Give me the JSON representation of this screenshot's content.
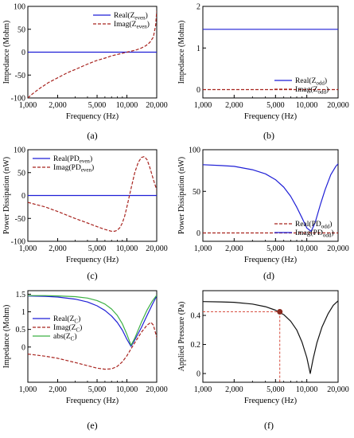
{
  "colors": {
    "blue": "#1f1fd6",
    "red": "#a8241f",
    "green": "#3cb043",
    "black": "#111111",
    "pink": "#e88aa5",
    "cyan": "#8ecff0",
    "marker": "#8b2a1f"
  },
  "x_ticks": [
    "1,000",
    "2,000",
    "5,000",
    "10,000",
    "20,000"
  ],
  "chart_data": [
    {
      "panel_label": "(a)",
      "type": "line",
      "xscale": "log",
      "xlim": [
        1000,
        20000
      ],
      "ylim": [
        -100,
        100
      ],
      "yticks": [
        "100",
        "50",
        "0",
        "-50",
        "-100"
      ],
      "xlabel": "Frequency (Hz)",
      "ylabel": "Impedance (Mohm)",
      "legend": {
        "position": "top-right",
        "entries": [
          [
            "Real(Z",
            "even",
            ")"
          ],
          [
            "Imag(Z",
            "even",
            ")"
          ]
        ]
      },
      "series": [
        {
          "name": "Real(Z_even)",
          "style": "solid",
          "color": "blue",
          "x": [
            1000,
            20000
          ],
          "y": [
            0,
            0
          ]
        },
        {
          "name": "Imag(Z_even)",
          "style": "dashed",
          "color": "red",
          "x": [
            1000,
            1100,
            1300,
            1600,
            2000,
            2500,
            3000,
            4000,
            5000,
            6000,
            7000,
            8000,
            9000,
            10000,
            11000,
            12500,
            14000,
            15500,
            17000,
            18500,
            19500,
            20000
          ],
          "y": [
            -100,
            -92,
            -80,
            -67,
            -56,
            -45,
            -38,
            -26,
            -18,
            -13,
            -8,
            -5,
            -2.5,
            0,
            2,
            5,
            9,
            14,
            21,
            33,
            58,
            90
          ]
        }
      ]
    },
    {
      "panel_label": "(b)",
      "type": "line",
      "xscale": "log",
      "xlim": [
        1000,
        20000
      ],
      "ylim": [
        -0.2,
        2
      ],
      "yticks": [
        "2",
        "1",
        "0"
      ],
      "xlabel": "Frequency (Hz)",
      "ylabel": "Impedance (Mohm)",
      "legend": {
        "position": "bottom-right",
        "entries": [
          [
            "Real(Z",
            "odd",
            ")"
          ],
          [
            "Imag(Z",
            "odd",
            ")"
          ]
        ]
      },
      "series": [
        {
          "name": "Real(Z_odd)",
          "style": "solid",
          "color": "blue",
          "x": [
            1000,
            20000
          ],
          "y": [
            1.45,
            1.45
          ]
        },
        {
          "name": "Imag(Z_odd)",
          "style": "dashed",
          "color": "red",
          "x": [
            1000,
            20000
          ],
          "y": [
            0,
            0
          ]
        }
      ]
    },
    {
      "panel_label": "(c)",
      "type": "line",
      "xscale": "log",
      "xlim": [
        1000,
        20000
      ],
      "ylim": [
        -100,
        100
      ],
      "yticks": [
        "100",
        "50",
        "0",
        "-50",
        "-100"
      ],
      "xlabel": "Frequency (Hz)",
      "ylabel": "Power Dissipation (nW)",
      "legend": {
        "position": "top-left",
        "entries": [
          [
            "Real(PD",
            "even",
            ")"
          ],
          [
            "Imag(PD",
            "even",
            ")"
          ]
        ]
      },
      "series": [
        {
          "name": "Real(PD_even)",
          "style": "solid",
          "color": "blue",
          "x": [
            1000,
            20000
          ],
          "y": [
            0,
            0
          ]
        },
        {
          "name": "Imag(PD_even)",
          "style": "dashed",
          "color": "red",
          "x": [
            1000,
            1500,
            2000,
            3000,
            4000,
            5000,
            6000,
            7000,
            7500,
            8000,
            8500,
            9000,
            9500,
            10000,
            11000,
            12000,
            13000,
            14000,
            15000,
            16000,
            17000,
            18500,
            20000
          ],
          "y": [
            -15,
            -25,
            -35,
            -50,
            -60,
            -68,
            -74,
            -78,
            -78,
            -76,
            -70,
            -60,
            -45,
            -25,
            15,
            50,
            72,
            83,
            85,
            78,
            62,
            35,
            12
          ]
        }
      ]
    },
    {
      "panel_label": "(d)",
      "type": "line",
      "xscale": "log",
      "xlim": [
        1000,
        20000
      ],
      "ylim": [
        -10,
        100
      ],
      "yticks": [
        "100",
        "50",
        "0"
      ],
      "xlabel": "Frequency (Hz)",
      "ylabel": "Power Dissipation (nW)",
      "legend": {
        "position": "bottom-right",
        "entries": [
          [
            "Real(PD",
            "odd",
            ")"
          ],
          [
            "Imag(PD",
            "odd",
            ")"
          ]
        ]
      },
      "series": [
        {
          "name": "Real(PD_odd)",
          "style": "dashed",
          "color": "red",
          "x": [
            1000,
            20000
          ],
          "y": [
            0,
            0
          ]
        },
        {
          "name": "Imag(PD_odd)",
          "style": "solid",
          "color": "blue",
          "x": [
            1000,
            1500,
            2000,
            3000,
            4000,
            5000,
            6000,
            7000,
            8000,
            9000,
            10000,
            11000,
            12000,
            13500,
            15000,
            17000,
            19000,
            20000
          ],
          "y": [
            82,
            81,
            80,
            76,
            71,
            64,
            55,
            44,
            31,
            18,
            6,
            2,
            12,
            34,
            52,
            70,
            80,
            83
          ]
        }
      ]
    },
    {
      "panel_label": "(e)",
      "type": "line",
      "xscale": "log",
      "xlim": [
        1000,
        20000
      ],
      "ylim": [
        -1,
        1.6
      ],
      "yticks": [
        "1.5",
        "1",
        "0.5",
        "0"
      ],
      "xlabel": "Frequency (Hz)",
      "ylabel": "Impedance (Mohm)",
      "legend": {
        "position": "left-center",
        "entries": [
          [
            "Real(Z",
            "C",
            ")"
          ],
          [
            "Imag(Z",
            "C",
            ")"
          ],
          [
            "abs(Z",
            "C",
            ")"
          ]
        ]
      },
      "series": [
        {
          "name": "Real(Z_C)",
          "style": "solid",
          "color": "blue",
          "x": [
            1000,
            1500,
            2000,
            3000,
            4000,
            5000,
            6000,
            7000,
            8000,
            9000,
            10000,
            11000,
            12000,
            14000,
            16000,
            18000,
            20000
          ],
          "y": [
            1.45,
            1.44,
            1.42,
            1.36,
            1.28,
            1.17,
            1.04,
            0.88,
            0.7,
            0.48,
            0.22,
            0.02,
            0.2,
            0.55,
            0.9,
            1.2,
            1.45
          ]
        },
        {
          "name": "Imag(Z_C)",
          "style": "dashed",
          "color": "red",
          "x": [
            1000,
            1500,
            2000,
            3000,
            4000,
            5000,
            6000,
            7000,
            8000,
            9000,
            10000,
            11000,
            12500,
            14000,
            16000,
            17500,
            18500,
            20000
          ],
          "y": [
            -0.2,
            -0.26,
            -0.32,
            -0.44,
            -0.53,
            -0.6,
            -0.63,
            -0.62,
            -0.55,
            -0.42,
            -0.25,
            -0.05,
            0.2,
            0.42,
            0.62,
            0.7,
            0.62,
            0.28
          ]
        },
        {
          "name": "abs(Z_C)",
          "style": "solid",
          "color": "green",
          "x": [
            1000,
            1500,
            2000,
            3000,
            4000,
            5000,
            6000,
            7000,
            8000,
            9000,
            10000,
            11000,
            12000,
            14000,
            16000,
            18000,
            20000
          ],
          "y": [
            1.46,
            1.46,
            1.45,
            1.43,
            1.39,
            1.32,
            1.22,
            1.08,
            0.9,
            0.66,
            0.36,
            0.05,
            0.25,
            0.7,
            1.05,
            1.3,
            1.47
          ]
        }
      ]
    },
    {
      "panel_label": "(f)",
      "type": "line",
      "xscale": "log",
      "xlim": [
        1000,
        20000
      ],
      "ylim": [
        -0.06,
        0.57
      ],
      "yticks": [
        "0.4",
        "0.2",
        "0"
      ],
      "xlabel": "Frequency (Hz)",
      "ylabel": "Applied Pressure (Pa)",
      "marker": {
        "x": 5500,
        "y": 0.425
      },
      "series": [
        {
          "name": "",
          "style": "solid",
          "color": "black",
          "x": [
            1000,
            1500,
            2000,
            3000,
            4000,
            5000,
            6000,
            7000,
            8000,
            9000,
            10000,
            10800,
            11500,
            12500,
            14000,
            16000,
            18000,
            20000
          ],
          "y": [
            0.495,
            0.493,
            0.49,
            0.478,
            0.46,
            0.436,
            0.405,
            0.36,
            0.3,
            0.215,
            0.11,
            0.0,
            0.1,
            0.21,
            0.32,
            0.41,
            0.47,
            0.5
          ]
        }
      ]
    }
  ]
}
